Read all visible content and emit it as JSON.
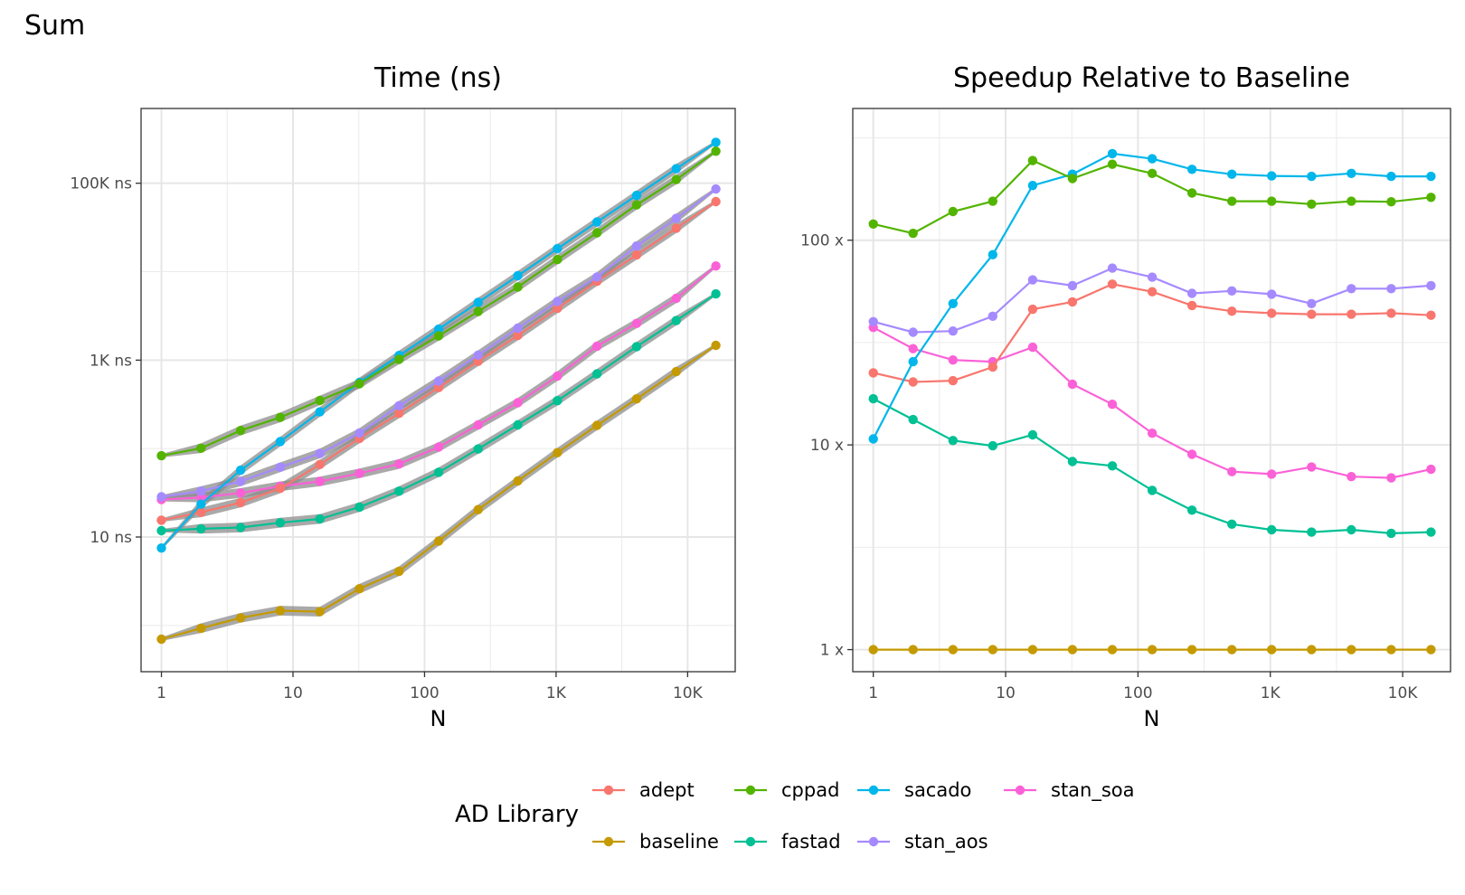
{
  "figure": {
    "title": "Sum"
  },
  "legend": {
    "title": "AD Library",
    "entries": [
      {
        "name": "adept",
        "color": "#F8766D"
      },
      {
        "name": "cppad",
        "color": "#53B400"
      },
      {
        "name": "sacado",
        "color": "#00B6EB"
      },
      {
        "name": "stan_soa",
        "color": "#FB61D7"
      },
      {
        "name": "baseline",
        "color": "#C49A00"
      },
      {
        "name": "fastad",
        "color": "#00C094"
      },
      {
        "name": "stan_aos",
        "color": "#A58AFF"
      }
    ]
  },
  "chart_data": [
    {
      "type": "line",
      "title": "Time (ns)",
      "xlabel": "N",
      "ylabel": "",
      "x_scale": "log10",
      "y_scale": "log10",
      "xlim": [
        0.7,
        23000
      ],
      "ylim": [
        0.3,
        700000
      ],
      "grid": true,
      "ribbons": true,
      "x_ticks": [
        {
          "v": 1,
          "label": "1"
        },
        {
          "v": 10,
          "label": "10"
        },
        {
          "v": 100,
          "label": "100"
        },
        {
          "v": 1000,
          "label": "1K"
        },
        {
          "v": 10000,
          "label": "10K"
        }
      ],
      "y_ticks": [
        {
          "v": 10,
          "label": "10 ns"
        },
        {
          "v": 1000,
          "label": "1K ns"
        },
        {
          "v": 100000,
          "label": "100K ns"
        }
      ],
      "x": [
        1,
        2,
        4,
        8,
        16,
        32,
        64,
        128,
        256,
        512,
        1024,
        2048,
        4096,
        8192,
        16384
      ],
      "series": [
        {
          "name": "baseline",
          "color": "#C49A00",
          "values": [
            0.7,
            0.93,
            1.22,
            1.47,
            1.43,
            2.6,
            4.1,
            9.0,
            20.4,
            43,
            90,
            183,
            365,
            740,
            1470
          ]
        },
        {
          "name": "fastad",
          "color": "#00C094",
          "values": [
            11.8,
            12.4,
            12.8,
            14.5,
            16.0,
            21.8,
            33,
            54,
            99,
            185,
            348,
            700,
            1420,
            2800,
            5600
          ]
        },
        {
          "name": "stan_soa",
          "color": "#FB61D7",
          "values": [
            26.5,
            28.0,
            31.5,
            37.5,
            42.5,
            52.5,
            67,
            104,
            185,
            330,
            660,
            1440,
            2600,
            5000,
            11600
          ]
        },
        {
          "name": "adept",
          "color": "#F8766D",
          "values": [
            15.5,
            19.0,
            24.5,
            35.5,
            66,
            130,
            250,
            490,
            970,
            1900,
            3850,
            7800,
            15500,
            31000,
            62000
          ]
        },
        {
          "name": "stan_aos",
          "color": "#A58AFF",
          "values": [
            28.5,
            33.0,
            42.5,
            61.5,
            88,
            150,
            305,
            580,
            1140,
            2300,
            4600,
            8700,
            19500,
            40000,
            86000
          ]
        },
        {
          "name": "sacado",
          "color": "#00B6EB",
          "values": [
            7.5,
            23.5,
            57,
            120,
            260,
            560,
            1130,
            2240,
            4500,
            9000,
            18200,
            36500,
            73000,
            146000,
            290000
          ]
        },
        {
          "name": "cppad",
          "color": "#53B400",
          "values": [
            83,
            101,
            160,
            225,
            350,
            540,
            1020,
            1880,
            3550,
            6700,
            13700,
            27500,
            57000,
            110000,
            230000
          ]
        }
      ]
    },
    {
      "type": "line",
      "title": "Speedup Relative to Baseline",
      "xlabel": "N",
      "ylabel": "",
      "x_scale": "log10",
      "y_scale": "log10",
      "xlim": [
        0.7,
        23000
      ],
      "ylim": [
        0.78,
        440
      ],
      "grid": true,
      "x_ticks": [
        {
          "v": 1,
          "label": "1"
        },
        {
          "v": 10,
          "label": "10"
        },
        {
          "v": 100,
          "label": "100"
        },
        {
          "v": 1000,
          "label": "1K"
        },
        {
          "v": 10000,
          "label": "10K"
        }
      ],
      "y_ticks": [
        {
          "v": 1,
          "label": "1 x"
        },
        {
          "v": 10,
          "label": "10 x"
        },
        {
          "v": 100,
          "label": "100 x"
        }
      ],
      "x": [
        1,
        2,
        4,
        8,
        16,
        32,
        64,
        128,
        256,
        512,
        1024,
        2048,
        4096,
        8192,
        16384
      ],
      "series": [
        {
          "name": "baseline",
          "color": "#C49A00",
          "values": [
            1,
            1,
            1,
            1,
            1,
            1,
            1,
            1,
            1,
            1,
            1,
            1,
            1,
            1,
            1
          ]
        },
        {
          "name": "fastad",
          "color": "#00C094",
          "values": [
            16.8,
            13.3,
            10.5,
            9.9,
            11.2,
            8.3,
            7.9,
            6.0,
            4.8,
            4.1,
            3.85,
            3.75,
            3.85,
            3.7,
            3.75
          ]
        },
        {
          "name": "stan_soa",
          "color": "#FB61D7",
          "values": [
            37.5,
            29.5,
            26.0,
            25.5,
            30.0,
            19.8,
            15.8,
            11.4,
            9.0,
            7.4,
            7.2,
            7.8,
            7.0,
            6.9,
            7.6
          ]
        },
        {
          "name": "adept",
          "color": "#F8766D",
          "values": [
            22.5,
            20.3,
            20.6,
            24.0,
            46,
            50,
            61,
            56,
            48,
            45,
            44,
            43.5,
            43.5,
            44,
            43
          ]
        },
        {
          "name": "stan_aos",
          "color": "#A58AFF",
          "values": [
            40,
            35.5,
            36,
            42.5,
            64,
            60,
            73,
            66,
            55,
            56.5,
            54.5,
            49,
            58,
            58,
            60
          ]
        },
        {
          "name": "sacado",
          "color": "#00B6EB",
          "values": [
            10.7,
            25.5,
            49,
            85,
            185,
            210,
            265,
            250,
            222,
            210,
            206,
            205,
            212,
            205,
            205
          ]
        },
        {
          "name": "cppad",
          "color": "#53B400",
          "values": [
            120,
            108,
            138,
            155,
            245,
            200,
            235,
            212,
            170,
            155,
            155,
            150,
            155,
            154,
            162
          ]
        }
      ]
    }
  ]
}
